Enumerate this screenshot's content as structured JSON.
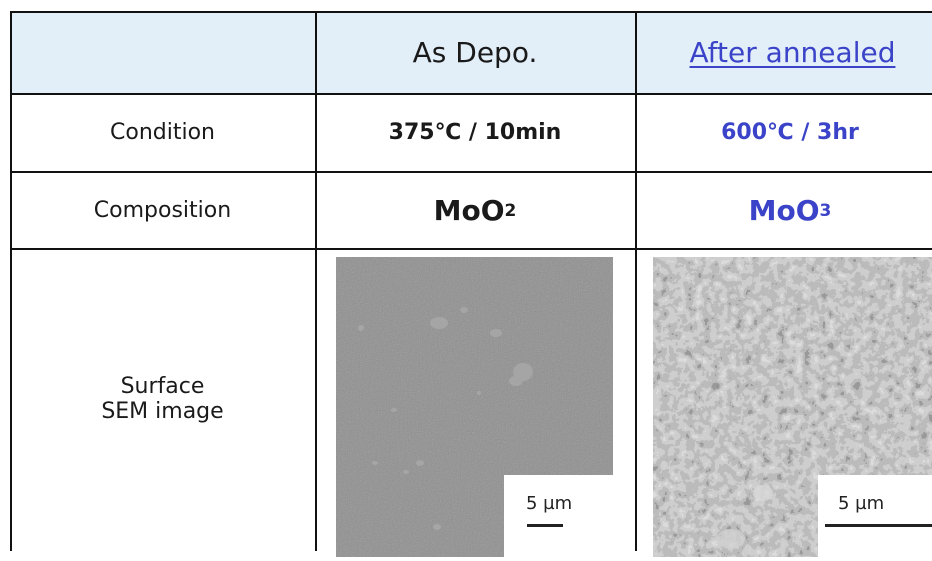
{
  "table": {
    "corner": "",
    "columns": [
      "As Depo.",
      "After annealed"
    ],
    "rows": [
      {
        "label": "Condition",
        "values": [
          "375℃ / 10min",
          "600℃ / 3hr"
        ]
      },
      {
        "label": "Composition",
        "values": [
          {
            "base": "MoO",
            "sub": "2"
          },
          {
            "base": "MoO",
            "sub": "3"
          }
        ]
      },
      {
        "label_lines": [
          "Surface",
          "SEM image"
        ],
        "images": [
          {
            "scale_label": "5 µm"
          },
          {
            "scale_label": "5 µm"
          }
        ]
      }
    ]
  },
  "colors": {
    "header_bg": "#e2eff9",
    "accent": "#3b44c8",
    "border": "#111111"
  },
  "icons": [
    "sem-image-as-deposited",
    "sem-image-annealed"
  ]
}
